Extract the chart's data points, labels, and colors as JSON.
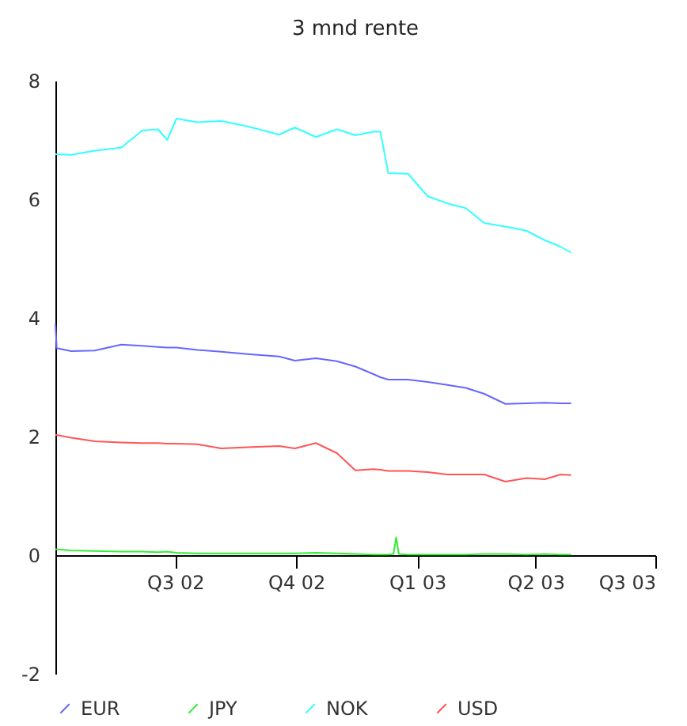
{
  "chart_data": {
    "type": "line",
    "title": "3 mnd rente",
    "x": [
      "2002-04-01",
      "2002-04-13",
      "2002-05-01",
      "2002-05-21",
      "2002-06-06",
      "2002-06-18",
      "2002-06-25",
      "2002-07-02",
      "2002-07-18",
      "2002-08-05",
      "2002-08-25",
      "2002-09-18",
      "2002-09-30",
      "2002-10-16",
      "2002-11-01",
      "2002-11-15",
      "2002-11-29",
      "2002-12-04",
      "2002-12-10",
      "2002-12-25",
      "2003-01-09",
      "2003-01-24",
      "2003-02-07",
      "2003-02-21",
      "2003-03-09",
      "2003-03-25",
      "2003-04-08",
      "2003-04-20",
      "2003-04-28"
    ],
    "series": [
      {
        "name": "EUR",
        "color": "#6666ff",
        "x": [
          "2002-04-01",
          "2002-04-02",
          "2002-04-13",
          "2002-05-01",
          "2002-05-21",
          "2002-06-06",
          "2002-06-18",
          "2002-06-25",
          "2002-07-02",
          "2002-07-18",
          "2002-08-05",
          "2002-08-25",
          "2002-09-18",
          "2002-09-30",
          "2002-10-16",
          "2002-11-01",
          "2002-11-15",
          "2002-11-29",
          "2002-12-04",
          "2002-12-10",
          "2002-12-25",
          "2003-01-09",
          "2003-01-24",
          "2003-02-07",
          "2003-02-21",
          "2003-03-09",
          "2003-03-25",
          "2003-04-08",
          "2003-04-20",
          "2003-04-28"
        ],
        "values": [
          3.9,
          3.49,
          3.44,
          3.45,
          3.55,
          3.53,
          3.51,
          3.5,
          3.5,
          3.46,
          3.43,
          3.39,
          3.35,
          3.28,
          3.32,
          3.27,
          3.18,
          3.05,
          3.0,
          2.96,
          2.96,
          2.92,
          2.87,
          2.82,
          2.72,
          2.55,
          2.56,
          2.57,
          2.56,
          2.56
        ]
      },
      {
        "name": "JPY",
        "color": "#33ee33",
        "x": [
          "2002-04-01",
          "2002-04-13",
          "2002-05-01",
          "2002-05-21",
          "2002-06-06",
          "2002-06-18",
          "2002-06-25",
          "2002-07-02",
          "2002-07-18",
          "2002-08-05",
          "2002-08-25",
          "2002-09-18",
          "2002-09-30",
          "2002-10-16",
          "2002-11-01",
          "2002-11-15",
          "2002-11-29",
          "2002-12-04",
          "2002-12-10",
          "2002-12-14",
          "2002-12-16",
          "2002-12-18",
          "2002-12-25",
          "2003-01-09",
          "2003-01-24",
          "2003-02-07",
          "2003-02-21",
          "2003-03-09",
          "2003-03-25",
          "2003-04-08",
          "2003-04-20",
          "2003-04-28"
        ],
        "values": [
          0.1,
          0.08,
          0.07,
          0.06,
          0.06,
          0.05,
          0.06,
          0.04,
          0.03,
          0.03,
          0.03,
          0.03,
          0.03,
          0.04,
          0.03,
          0.02,
          0.01,
          0.01,
          0.01,
          0.02,
          0.3,
          0.02,
          0.01,
          0.01,
          0.01,
          0.01,
          0.02,
          0.02,
          0.01,
          0.02,
          0.01,
          0.01
        ]
      },
      {
        "name": "NOK",
        "color": "#33ffff",
        "values": [
          6.76,
          6.75,
          6.82,
          6.87,
          7.16,
          7.18,
          7.0,
          7.36,
          7.3,
          7.32,
          7.23,
          7.09,
          7.21,
          7.05,
          7.18,
          7.08,
          7.14,
          7.14,
          6.44,
          6.43,
          6.05,
          5.93,
          5.85,
          5.6,
          5.54,
          5.47,
          5.31,
          5.2,
          5.1
        ]
      },
      {
        "name": "USD",
        "color": "#ff5555",
        "values": [
          2.03,
          1.98,
          1.92,
          1.9,
          1.89,
          1.89,
          1.88,
          1.88,
          1.87,
          1.8,
          1.82,
          1.84,
          1.8,
          1.89,
          1.72,
          1.43,
          1.45,
          1.44,
          1.42,
          1.42,
          1.4,
          1.36,
          1.36,
          1.36,
          1.24,
          1.3,
          1.28,
          1.36,
          1.35
        ]
      }
    ],
    "xlim": [
      "2002-04-01",
      "2003-07-01"
    ],
    "xticks": [
      {
        "value": "2002-07-01",
        "label": "Q3 02"
      },
      {
        "value": "2002-10-01",
        "label": "Q4 02"
      },
      {
        "value": "2003-01-01",
        "label": "Q1 03"
      },
      {
        "value": "2003-04-01",
        "label": "Q2 03"
      },
      {
        "value": "2003-07-01",
        "label": "Q3 03"
      }
    ],
    "ylim": [
      -2,
      8
    ],
    "yticks": [
      -2,
      0,
      2,
      4,
      6,
      8
    ],
    "legend": "bottom",
    "marker": "none",
    "line_style": "solid"
  }
}
